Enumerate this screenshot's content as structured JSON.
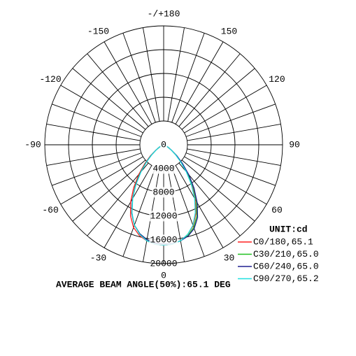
{
  "chart_data": {
    "type": "polar",
    "x": [
      -90,
      -85,
      -80,
      -75,
      -70,
      -65,
      -60,
      -55,
      -50,
      -45,
      -40,
      -35,
      -30,
      -25,
      -20,
      -15,
      -10,
      -5,
      0,
      5,
      10,
      15,
      20,
      25,
      30,
      35,
      40,
      45,
      50,
      55,
      60,
      65,
      70,
      75,
      80,
      85,
      90
    ],
    "series": [
      {
        "name": "C0/180,65.1",
        "color": "#ff2020",
        "values": [
          0,
          40,
          80,
          150,
          300,
          500,
          900,
          1700,
          2900,
          4500,
          6500,
          8800,
          11100,
          13200,
          14800,
          15800,
          16400,
          16800,
          16900,
          16800,
          16400,
          15600,
          14500,
          12800,
          10600,
          8300,
          6100,
          4200,
          2700,
          1600,
          900,
          500,
          300,
          150,
          80,
          40,
          0
        ]
      },
      {
        "name": "C30/210,65.0",
        "color": "#20c020",
        "values": [
          0,
          40,
          80,
          150,
          300,
          500,
          900,
          1600,
          2700,
          4200,
          6100,
          8300,
          10500,
          12700,
          14400,
          15500,
          16200,
          16600,
          16700,
          16700,
          16400,
          15800,
          14800,
          13200,
          11000,
          8700,
          6400,
          4400,
          2800,
          1600,
          900,
          500,
          300,
          150,
          80,
          40,
          0
        ]
      },
      {
        "name": "C60/240,65.0",
        "color": "#202090",
        "values": [
          0,
          40,
          80,
          150,
          300,
          500,
          900,
          1600,
          2700,
          4100,
          6000,
          8200,
          10500,
          12700,
          14400,
          15500,
          16200,
          16600,
          16700,
          16700,
          16400,
          15900,
          15000,
          13500,
          11300,
          8900,
          6600,
          4500,
          2900,
          1700,
          900,
          500,
          300,
          150,
          80,
          40,
          0
        ]
      },
      {
        "name": "C90/270,65.2",
        "color": "#20e0e0",
        "values": [
          0,
          40,
          80,
          150,
          300,
          500,
          900,
          1600,
          2600,
          4000,
          5900,
          8100,
          10400,
          12600,
          14400,
          15600,
          16400,
          16800,
          16900,
          16800,
          16400,
          15600,
          14400,
          12600,
          10400,
          8100,
          5900,
          4000,
          2600,
          1600,
          900,
          500,
          300,
          150,
          80,
          40,
          0
        ]
      }
    ],
    "rlim": [
      0,
      20000
    ],
    "rticks": [
      0,
      4000,
      8000,
      12000,
      16000,
      20000
    ],
    "angle_ticks": [
      {
        "value": 180,
        "label": "-/+180"
      },
      -150,
      150,
      -120,
      120,
      -90,
      90,
      -60,
      60,
      -30,
      30,
      0
    ],
    "legend_title": "UNIT:cd",
    "footer": "AVERAGE BEAM ANGLE(50%):65.1 DEG"
  }
}
